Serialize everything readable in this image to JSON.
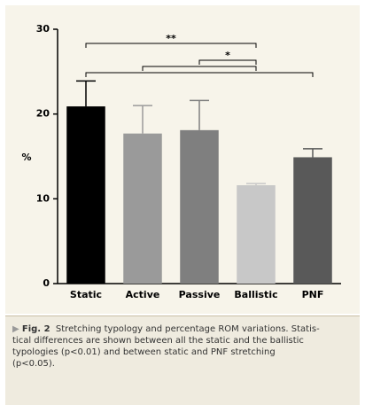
{
  "chart_data": {
    "type": "bar",
    "y_label": "%",
    "categories": [
      "Static",
      "Active",
      "Passive",
      "Ballistic",
      "PNF"
    ],
    "values": [
      20.9,
      17.7,
      18.1,
      11.6,
      14.9
    ],
    "errors": [
      3.0,
      3.3,
      3.5,
      0.2,
      1.0
    ],
    "colors": [
      "#000000",
      "#9a9a9a",
      "#7f7f7f",
      "#c8c8c8",
      "#595959"
    ],
    "ylim": [
      0,
      30
    ],
    "yticks": [
      0,
      10,
      20,
      30
    ],
    "brackets": [
      {
        "from": "Static",
        "to": "Ballistic",
        "label": "**"
      },
      {
        "from": "Passive",
        "to": "Ballistic",
        "label": "*"
      },
      {
        "from": "Active",
        "to": "Ballistic"
      },
      {
        "from": "Static",
        "to": "PNF"
      }
    ]
  },
  "caption": {
    "figure_label": "Fig. 2",
    "lines": [
      "Stretching typology and percentage ROM variations. Statis-",
      "tical differences are shown between all the static and the ballistic",
      "typologies (p<0.01) and between static and PNF stretching",
      "(p<0.05)."
    ]
  }
}
